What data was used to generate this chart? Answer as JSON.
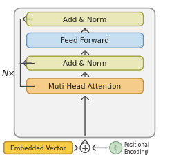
{
  "white": "#ffffff",
  "outer_box_face": "#f2f2f2",
  "outer_box_edge": "#999999",
  "box_add_norm_color": "#e8e8b8",
  "box_feed_forward_color": "#c5dff0",
  "box_attention_color": "#f5cc88",
  "box_embed_color": "#f5cc44",
  "box_positional_color": "#c8e0c8",
  "text_color": "#222222",
  "arrow_color": "#444444",
  "skip_color": "#444444",
  "nx_label": "N×",
  "label_add_norm": "Add & Norm",
  "label_feed_forward": "Feed Forward",
  "label_attention": "Muti-Head Attention",
  "label_embed": "Embedded Vector",
  "label_positional": "Positional\nEncoding",
  "figsize": [
    2.52,
    2.32
  ],
  "dpi": 100
}
